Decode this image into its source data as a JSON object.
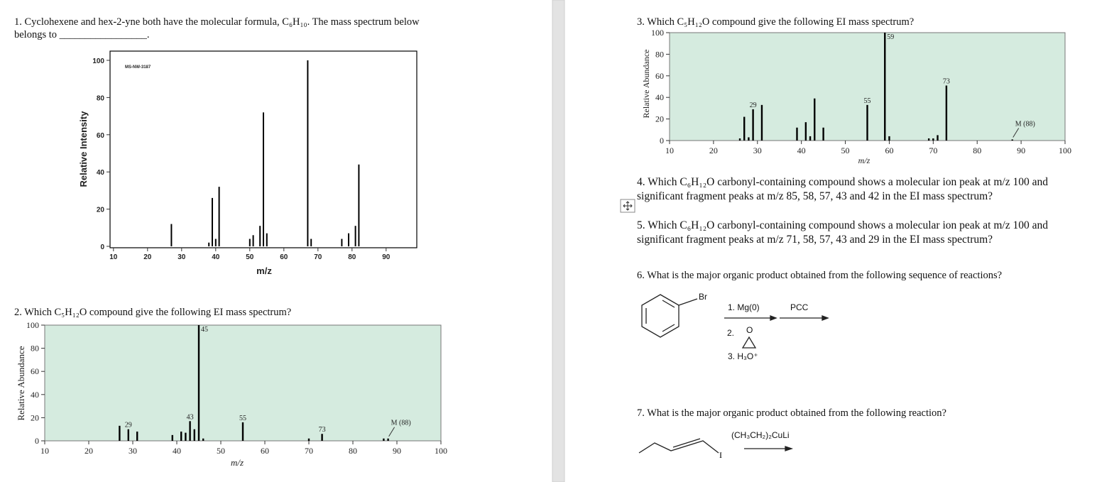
{
  "questions": [
    {
      "lines": [
        "1. Cyclohexene and hex-2-yne both have the molecular formula, C₆H₁₀.   The mass spectrum below",
        "belongs to _________________."
      ]
    },
    {
      "lines": [
        "2. Which C₅H₁₂O compound give the following EI mass spectrum?"
      ]
    },
    {
      "lines": [
        "3. Which C₅H₁₂O compound give the following EI mass spectrum?"
      ]
    },
    {
      "lines": [
        "4. Which C₆H₁₂O carbonyl-containing compound shows a molecular ion peak at m/z 100 and",
        "significant fragment peaks at m/z 85, 58, 57, 43 and 42 in the EI mass spectrum?"
      ]
    },
    {
      "lines": [
        "5. Which C₆H₁₂O carbonyl-containing compound shows a molecular ion peak at m/z 100 and",
        "significant fragment peaks at m/z 71, 58, 57, 43 and 29 in the EI mass spectrum?"
      ]
    },
    {
      "lines": [
        "6. What is the major organic product obtained from the following sequence of reactions?"
      ]
    },
    {
      "lines": [
        "7. What is the major organic product obtained from the following reaction?"
      ]
    }
  ],
  "reaction6": {
    "substituent": "Br",
    "step1": "1. Mg(0)",
    "step2": "2.",
    "epoxide_o": "O",
    "step3": "3. H₃O⁺",
    "reagent2": "PCC"
  },
  "reaction7": {
    "leaving_group": "I",
    "reagent": "(CH₃CH₂)₂CuLi"
  },
  "chart_data": [
    {
      "type": "spectrum",
      "title": "MS-NW-3187",
      "x_label": "m/z",
      "y_label": "Relative Intensity",
      "background": "#ffffff",
      "color": "#000000",
      "xlim": [
        9,
        99
      ],
      "ylim": [
        0,
        100
      ],
      "xticks": [
        10,
        20,
        30,
        40,
        50,
        60,
        70,
        80,
        90
      ],
      "yticks": [
        0,
        20,
        40,
        60,
        80,
        100
      ],
      "x": [
        27,
        38,
        39,
        40,
        41,
        50,
        51,
        53,
        54,
        55,
        67,
        68,
        77,
        79,
        81,
        82
      ],
      "values": [
        12,
        2,
        26,
        4,
        32,
        4,
        6,
        11,
        72,
        7,
        100,
        4,
        4,
        7,
        11,
        44
      ],
      "annotations": []
    },
    {
      "type": "spectrum",
      "x_label": "m/z",
      "y_label": "Relative Abundance",
      "background": "#d5ebdf",
      "color": "#000000",
      "xlim": [
        10,
        100
      ],
      "ylim": [
        0,
        100
      ],
      "xticks": [
        10,
        20,
        30,
        40,
        50,
        60,
        70,
        80,
        90,
        100
      ],
      "yticks": [
        0,
        20,
        40,
        60,
        80,
        100
      ],
      "x": [
        27,
        29,
        31,
        39,
        41,
        42,
        43,
        44,
        45,
        46,
        55,
        70,
        73,
        87,
        88
      ],
      "values": [
        13,
        10,
        8,
        5,
        8,
        7,
        17,
        10,
        100,
        2,
        16,
        2,
        6,
        2,
        2
      ],
      "annotations": [
        {
          "x": 29,
          "text": "29"
        },
        {
          "x": 43,
          "text": "43"
        },
        {
          "x": 45,
          "text": "45"
        },
        {
          "x": 55,
          "text": "55"
        },
        {
          "x": 73,
          "text": "73"
        },
        {
          "x": 88,
          "text": "M (88)"
        }
      ]
    },
    {
      "type": "spectrum",
      "x_label": "m/z",
      "y_label": "Relative Abundance",
      "background": "#d5ebdf",
      "color": "#000000",
      "xlim": [
        10,
        100
      ],
      "ylim": [
        0,
        100
      ],
      "xticks": [
        10,
        20,
        30,
        40,
        50,
        60,
        70,
        80,
        90,
        100
      ],
      "yticks": [
        0,
        20,
        40,
        60,
        80,
        100
      ],
      "x": [
        26,
        27,
        28,
        29,
        31,
        39,
        41,
        42,
        43,
        45,
        55,
        59,
        60,
        69,
        70,
        71,
        73,
        88
      ],
      "values": [
        2,
        22,
        3,
        29,
        33,
        12,
        17,
        4,
        39,
        12,
        33,
        100,
        4,
        2,
        2,
        5,
        51,
        1
      ],
      "annotations": [
        {
          "x": 29,
          "text": "29"
        },
        {
          "x": 55,
          "text": "55"
        },
        {
          "x": 59,
          "text": "59"
        },
        {
          "x": 73,
          "text": "73"
        },
        {
          "x": 88,
          "text": "M (88)"
        }
      ]
    }
  ]
}
